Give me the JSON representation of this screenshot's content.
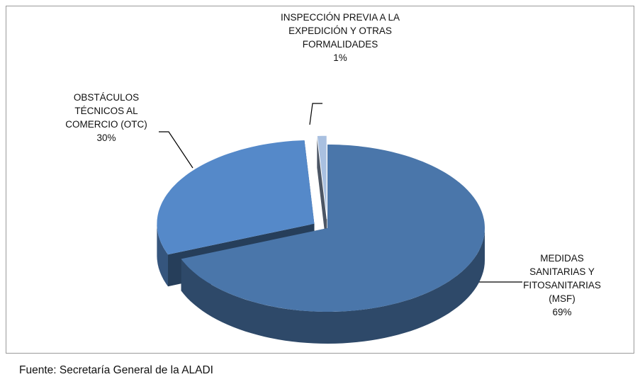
{
  "chart_data": {
    "type": "pie3d",
    "categories": [
      "MEDIDAS SANITARIAS Y FITOSANITARIAS (MSF)",
      "OBSTÁCULOS TÉCNICOS AL COMERCIO (OTC)",
      "INSPECCIÓN PREVIA A LA EXPEDICIÓN Y OTRAS FORMALIDADES"
    ],
    "values": [
      69,
      30,
      1
    ],
    "value_labels": [
      "69%",
      "30%",
      "1%"
    ],
    "colors": [
      "#4a76aa",
      "#5589c9",
      "#a9c0e0"
    ],
    "source": "Fuente: Secretaría General de la ALADI"
  }
}
